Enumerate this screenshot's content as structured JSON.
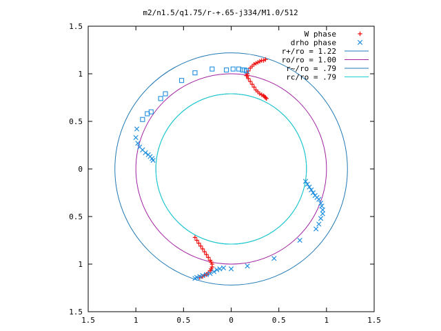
{
  "chart_data": {
    "type": "scatter",
    "title": "m2/n1.5/q1.75/r-+.65-j334/M1.0/512",
    "xlabel": "",
    "ylabel": "",
    "xlim": [
      -1.5,
      1.5
    ],
    "ylim": [
      -1.5,
      1.5
    ],
    "x_ticks": [
      -1.5,
      -1,
      -0.5,
      0,
      0.5,
      1,
      1.5
    ],
    "x_tick_labels": [
      "1.5",
      "1",
      "0.5",
      "0",
      "0.5",
      "1",
      "1.5"
    ],
    "y_ticks": [
      1.5,
      1,
      0.5,
      0,
      -0.5,
      -1,
      -1.5
    ],
    "y_tick_labels": [
      "1.5",
      "1",
      "0.5",
      "0",
      "0.5",
      "1",
      "1.5"
    ],
    "grid": false,
    "legend_position": "top-right",
    "circles": [
      {
        "name": "r+/ro = 1.22",
        "radius": 1.22,
        "color": "#1f78b4"
      },
      {
        "name": "ro/ro = 1.00",
        "radius": 1.0,
        "color": "#a020a0"
      },
      {
        "name": "r~/ro = .79",
        "radius": 0.79,
        "color": "#1f78b4"
      },
      {
        "name": "rc/ro = .79",
        "radius": 0.79,
        "color": "#18d0d0"
      }
    ],
    "series": [
      {
        "name": "W phase",
        "marker": "+",
        "color": "#ee1111",
        "x": [
          0.16,
          0.17,
          0.18,
          0.2,
          0.22,
          0.24,
          0.26,
          0.28,
          0.3,
          0.32,
          0.34,
          0.36,
          0.17,
          0.18,
          0.2,
          0.22,
          0.24,
          0.26,
          0.28,
          0.3,
          0.32,
          0.34,
          0.35,
          0.36,
          0.37,
          -0.38,
          -0.36,
          -0.34,
          -0.32,
          -0.3,
          -0.28,
          -0.26,
          -0.24,
          -0.22,
          -0.21,
          -0.2,
          -0.2,
          -0.21,
          -0.22,
          -0.24,
          -0.26,
          -0.28,
          -0.3,
          -0.33
        ],
        "y": [
          0.98,
          1.0,
          1.03,
          1.06,
          1.08,
          1.1,
          1.11,
          1.12,
          1.13,
          1.14,
          1.14,
          1.15,
          0.98,
          0.95,
          0.92,
          0.89,
          0.86,
          0.83,
          0.81,
          0.79,
          0.78,
          0.77,
          0.76,
          0.75,
          0.74,
          -0.72,
          -0.75,
          -0.78,
          -0.81,
          -0.84,
          -0.87,
          -0.9,
          -0.93,
          -0.96,
          -0.98,
          -1.0,
          -1.03,
          -1.05,
          -1.07,
          -1.09,
          -1.11,
          -1.12,
          -1.13,
          -1.14
        ]
      },
      {
        "name": "drho phase",
        "marker": "x",
        "color": "#1f8fe0",
        "x": [
          -0.99,
          -1.0,
          -0.98,
          -0.96,
          -0.93,
          -0.9,
          -0.87,
          -0.85,
          -0.83,
          -0.82,
          0.78,
          0.8,
          0.82,
          0.84,
          0.86,
          0.88,
          0.9,
          0.92,
          0.94,
          0.95,
          0.96,
          0.96,
          0.94,
          0.92,
          0.89,
          0.72,
          0.45,
          0.17,
          0.0,
          -0.08,
          -0.12,
          -0.15,
          -0.18,
          -0.22,
          -0.26,
          -0.3,
          -0.33,
          -0.36,
          -0.38
        ],
        "y": [
          0.42,
          0.33,
          0.27,
          0.23,
          0.2,
          0.17,
          0.15,
          0.13,
          0.11,
          0.09,
          -0.13,
          -0.16,
          -0.19,
          -0.22,
          -0.25,
          -0.28,
          -0.3,
          -0.32,
          -0.36,
          -0.39,
          -0.43,
          -0.47,
          -0.52,
          -0.58,
          -0.63,
          -0.75,
          -0.94,
          -1.02,
          -1.05,
          -1.04,
          -1.05,
          -1.06,
          -1.08,
          -1.1,
          -1.11,
          -1.12,
          -1.13,
          -1.14,
          -1.15
        ]
      },
      {
        "name": "drho phase (squares)",
        "marker": "square",
        "color": "#1f8fe0",
        "x": [
          -0.93,
          -0.88,
          -0.84,
          -0.74,
          -0.69,
          -0.52,
          -0.38,
          -0.2,
          -0.05,
          0.02,
          0.08,
          0.12,
          0.14,
          0.16
        ],
        "y": [
          0.52,
          0.58,
          0.6,
          0.74,
          0.79,
          0.93,
          1.01,
          1.05,
          1.04,
          1.05,
          1.05,
          1.04,
          1.04,
          1.03
        ]
      }
    ]
  }
}
